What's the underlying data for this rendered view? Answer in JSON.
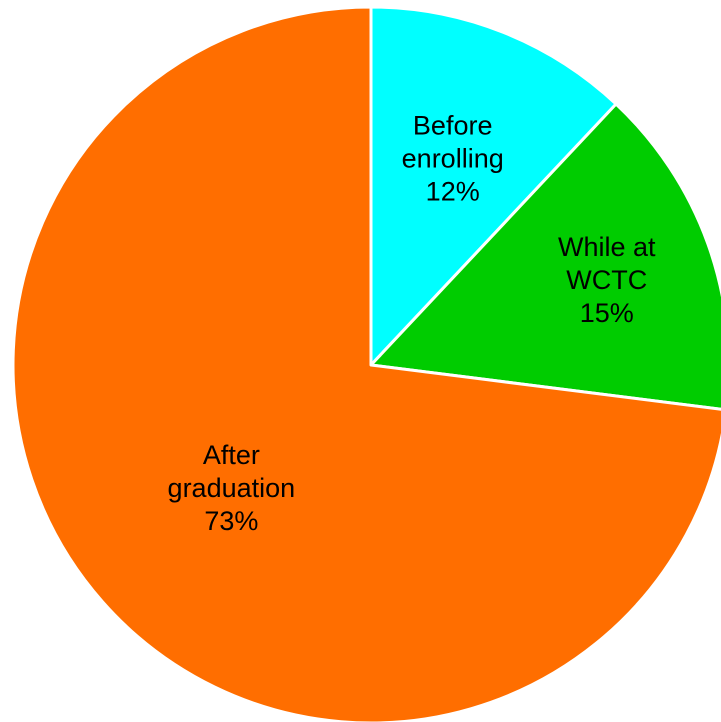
{
  "chart_data": {
    "type": "pie",
    "title": "",
    "slices": [
      {
        "label_lines": [
          "Before",
          "enrolling"
        ],
        "value": 12,
        "value_label": "12%",
        "color": "#00FFFF"
      },
      {
        "label_lines": [
          "While at",
          "WCTC"
        ],
        "value": 15,
        "value_label": "15%",
        "color": "#00CC00"
      },
      {
        "label_lines": [
          "After",
          "graduation"
        ],
        "value": 73,
        "value_label": "73%",
        "color": "#FF6E00"
      }
    ],
    "slice_border_color": "#FFFFFF",
    "start_angle": "12 o'clock",
    "direction": "clockwise",
    "legend": "none"
  }
}
